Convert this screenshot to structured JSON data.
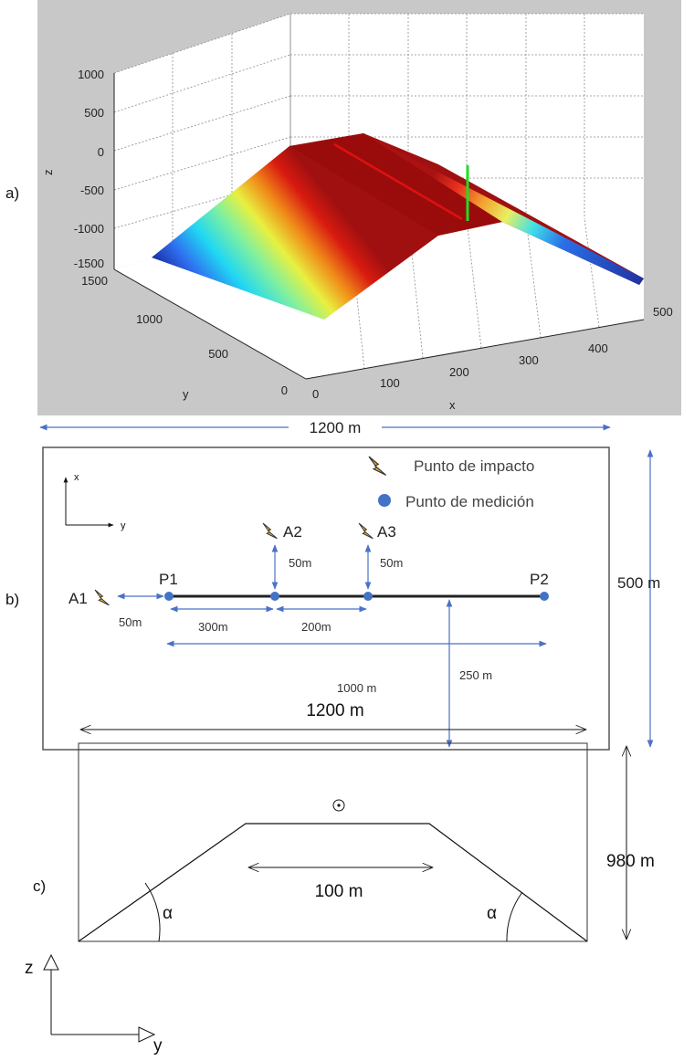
{
  "panel_a": {
    "label": "a)",
    "z_axis": {
      "label": "z",
      "ticks": [
        "1000",
        "500",
        "0",
        "-500",
        "-1000",
        "-1500"
      ]
    },
    "y_axis": {
      "label": "y",
      "ticks": [
        "1500",
        "1000",
        "500",
        "0"
      ]
    },
    "x_axis": {
      "label": "x",
      "ticks": [
        "0",
        "100",
        "200",
        "300",
        "400",
        "500"
      ]
    },
    "colormap": "jet",
    "colors": {
      "background": "#c8c8c8",
      "crest_line": "#e01010",
      "marker_line": "#22dd22"
    }
  },
  "panel_b": {
    "label": "b)",
    "width_label": "1200 m",
    "height_label": "500 m",
    "legend": {
      "impact": "Punto de impacto",
      "measurement": "Punto de medición"
    },
    "axes": {
      "x": "x",
      "y": "y"
    },
    "points": {
      "p1": "P1",
      "p2": "P2",
      "a1": "A1",
      "a2": "A2",
      "a3": "A3"
    },
    "dims": {
      "a1_offset": "50m",
      "a2_offset": "50m",
      "a3_offset": "50m",
      "p1_a2": "300m",
      "a2_a3": "200m",
      "p1_p2": "1000 m",
      "line_to_edge": "250 m"
    },
    "colors": {
      "accent": "#4a72c4",
      "point": "#4472c4",
      "border": "#555555"
    }
  },
  "panel_c": {
    "label": "c)",
    "width_label": "1200 m",
    "height_label": "980 m",
    "top_label": "100 m",
    "angle_left": "α",
    "angle_right": "α",
    "axes": {
      "z": "z",
      "y": "y"
    }
  }
}
